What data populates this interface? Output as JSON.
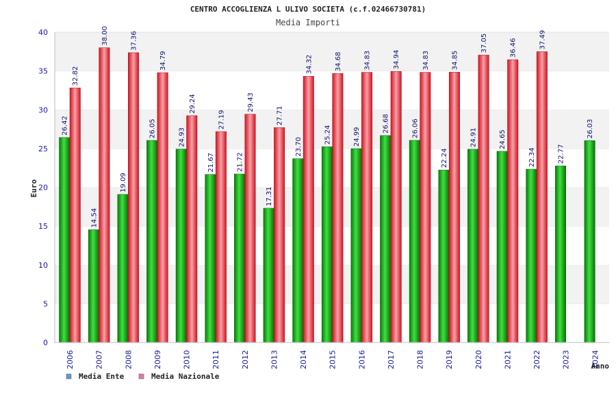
{
  "chart_data": {
    "type": "bar",
    "title": "CENTRO ACCOGLIENZA L ULIVO SOCIETA (c.f.02466730781)",
    "subtitle": "Media Importi",
    "xlabel": "Anno",
    "ylabel": "Euro",
    "ylim": [
      0,
      40
    ],
    "yticks": [
      0,
      5,
      10,
      15,
      20,
      25,
      30,
      35,
      40
    ],
    "grid": "horizontal bands",
    "legend_position": "bottom-left",
    "categories": [
      "2006",
      "2007",
      "2008",
      "2009",
      "2010",
      "2011",
      "2012",
      "2013",
      "2014",
      "2015",
      "2016",
      "2017",
      "2018",
      "2019",
      "2020",
      "2021",
      "2022",
      "2023",
      "2024"
    ],
    "series": [
      {
        "name": "Media Ente",
        "legend_color": "#5b9bd5",
        "bar_color": "#10b010",
        "values": [
          26.42,
          14.54,
          19.09,
          26.05,
          24.93,
          21.67,
          21.72,
          17.31,
          23.7,
          25.24,
          24.99,
          26.68,
          26.06,
          22.24,
          24.91,
          24.65,
          22.34,
          22.77,
          26.03
        ],
        "labels": [
          "26.42",
          "14.54",
          "19.09",
          "26.05",
          "24.93",
          "21.67",
          "21.72",
          "17.31",
          "23.70",
          "25.24",
          "24.99",
          "26.68",
          "26.06",
          "22.24",
          "24.91",
          "24.65",
          "22.34",
          "22.77",
          "26.03"
        ]
      },
      {
        "name": "Media Nazionale",
        "legend_color": "#e07aa8",
        "bar_color": "#e8202a",
        "values": [
          32.82,
          38.0,
          37.36,
          34.79,
          29.24,
          27.19,
          29.43,
          27.71,
          34.32,
          34.68,
          34.83,
          34.94,
          34.83,
          34.85,
          37.05,
          36.46,
          37.49,
          null,
          null
        ],
        "labels": [
          "32.82",
          "38.00",
          "37.36",
          "34.79",
          "29.24",
          "27.19",
          "29.43",
          "27.71",
          "34.32",
          "34.68",
          "34.83",
          "34.94",
          "34.83",
          "34.85",
          "37.05",
          "36.46",
          "37.49",
          "",
          ""
        ]
      }
    ]
  }
}
